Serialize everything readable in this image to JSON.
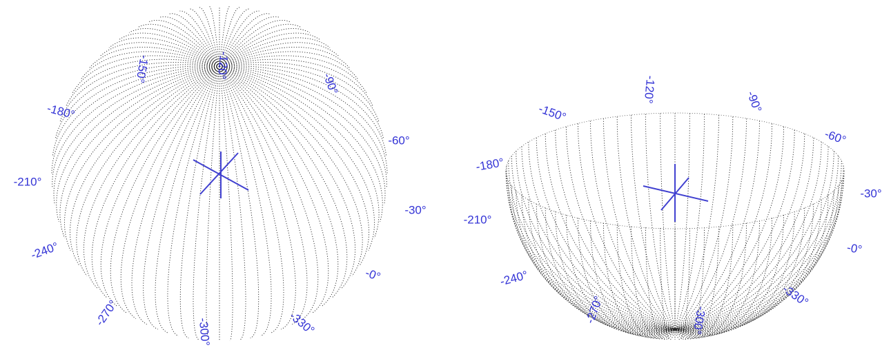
{
  "panels": [
    {
      "labels": [
        "-150°",
        "-120°",
        "-90°",
        "-60°",
        "-30°",
        "-0°",
        "-330°",
        "-300°",
        "-270°",
        "-240°",
        "-210°",
        "-180°"
      ]
    },
    {
      "labels": [
        "-150°",
        "-120°",
        "-90°",
        "-60°",
        "-30°",
        "-0°",
        "-330°",
        "-300°",
        "-270°",
        "-240°",
        "-210°",
        "-180°"
      ]
    }
  ]
}
